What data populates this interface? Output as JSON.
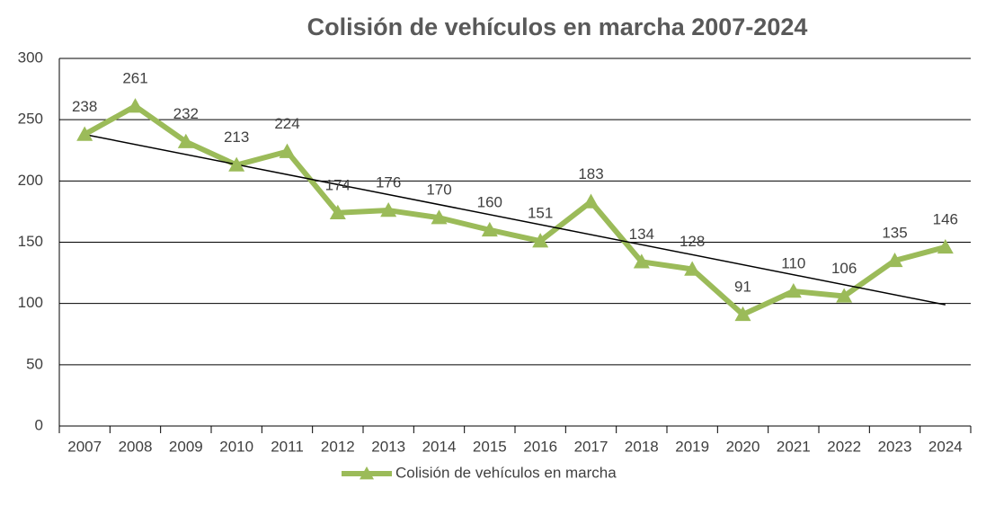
{
  "chart_data": {
    "type": "line",
    "title": "Colisión de vehículos en marcha 2007-2024",
    "categories": [
      "2007",
      "2008",
      "2009",
      "2010",
      "2011",
      "2012",
      "2013",
      "2014",
      "2015",
      "2016",
      "2017",
      "2018",
      "2019",
      "2020",
      "2021",
      "2022",
      "2023",
      "2024"
    ],
    "series": [
      {
        "name": "Colisión de vehículos en marcha",
        "color": "#9bbb59",
        "values": [
          238,
          261,
          232,
          213,
          224,
          174,
          176,
          170,
          160,
          151,
          183,
          134,
          128,
          91,
          110,
          106,
          135,
          146
        ]
      }
    ],
    "ylim": [
      0,
      300
    ],
    "yticks": [
      0,
      50,
      100,
      150,
      200,
      250,
      300
    ],
    "grid": true,
    "trendline": "linear",
    "legend": "bottom"
  }
}
